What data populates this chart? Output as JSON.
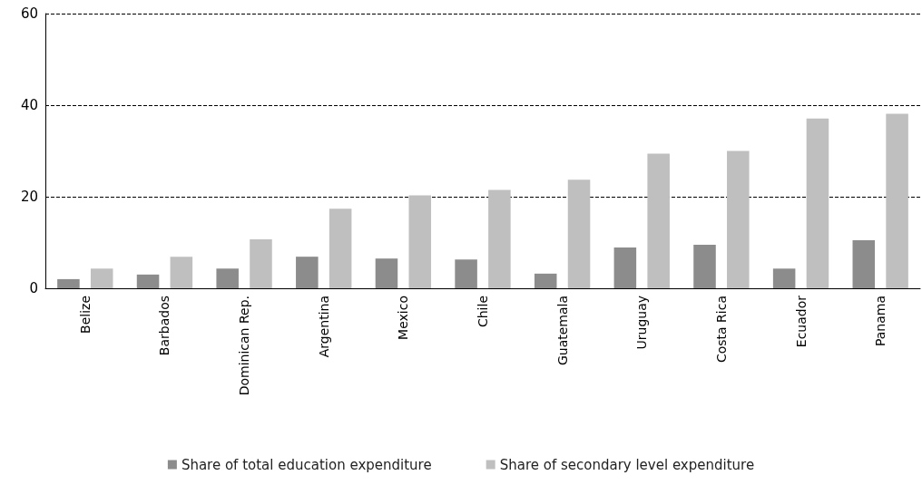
{
  "chart_data": {
    "type": "bar",
    "categories": [
      "Belize",
      "Barbados",
      "Dominican Rep.",
      "Argentina",
      "Mexico",
      "Chile",
      "Guatemala",
      "Uruguay",
      "Costa Rica",
      "Ecuador",
      "Panama"
    ],
    "series": [
      {
        "name": "Share of total education expenditure",
        "color": "#8c8c8c",
        "values": [
          2.0,
          3.0,
          4.3,
          6.9,
          6.5,
          6.3,
          3.2,
          8.9,
          9.5,
          4.3,
          10.5
        ]
      },
      {
        "name": "Share of secondary level expenditure",
        "color": "#bfbfbf",
        "values": [
          4.3,
          6.9,
          10.7,
          17.4,
          20.3,
          21.5,
          23.7,
          29.4,
          30.0,
          37.1,
          38.1
        ]
      }
    ],
    "ylim": [
      0,
      60
    ],
    "yticks": [
      0,
      20,
      40,
      60
    ],
    "grid": "y",
    "legend": "bottom"
  }
}
